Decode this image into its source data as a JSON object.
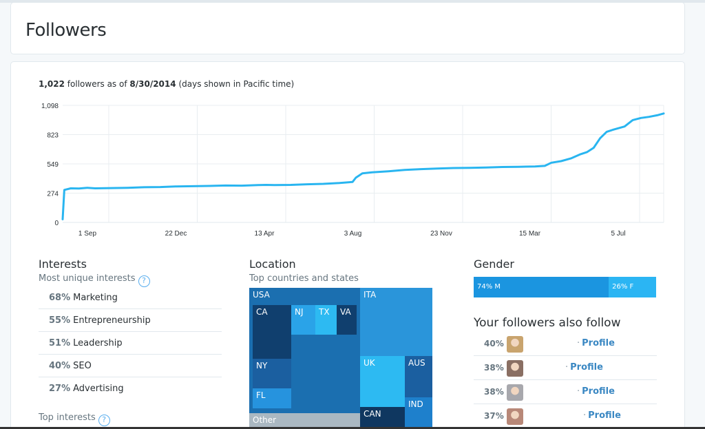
{
  "page": {
    "title": "Followers"
  },
  "summary": {
    "count": "1,022",
    "text_mid": "followers as of",
    "date": "8/30/2014",
    "note": "(days shown in Pacific time)"
  },
  "chart_data": {
    "type": "line",
    "y_ticks": [
      "0",
      "274",
      "549",
      "823",
      "1,098"
    ],
    "ylim": [
      0,
      1098
    ],
    "x_ticks": [
      "1 Sep",
      "22 Dec",
      "13 Apr",
      "3 Aug",
      "23 Nov",
      "15 Mar",
      "5 Jul"
    ],
    "series": [
      {
        "color": "#29b5f0",
        "points": [
          [
            0,
            30
          ],
          [
            1,
            305
          ],
          [
            5,
            320
          ],
          [
            10,
            318
          ],
          [
            15,
            325
          ],
          [
            20,
            320
          ],
          [
            30,
            322
          ],
          [
            40,
            325
          ],
          [
            50,
            330
          ],
          [
            60,
            332
          ],
          [
            70,
            338
          ],
          [
            80,
            340
          ],
          [
            90,
            342
          ],
          [
            100,
            346
          ],
          [
            110,
            345
          ],
          [
            120,
            350
          ],
          [
            125,
            352
          ],
          [
            130,
            350
          ],
          [
            140,
            352
          ],
          [
            150,
            358
          ],
          [
            160,
            362
          ],
          [
            170,
            370
          ],
          [
            178,
            380
          ],
          [
            180,
            420
          ],
          [
            184,
            460
          ],
          [
            190,
            470
          ],
          [
            200,
            480
          ],
          [
            210,
            492
          ],
          [
            220,
            500
          ],
          [
            230,
            505
          ],
          [
            240,
            510
          ],
          [
            250,
            512
          ],
          [
            260,
            515
          ],
          [
            270,
            520
          ],
          [
            280,
            522
          ],
          [
            290,
            525
          ],
          [
            296,
            530
          ],
          [
            300,
            560
          ],
          [
            306,
            575
          ],
          [
            312,
            600
          ],
          [
            318,
            640
          ],
          [
            322,
            660
          ],
          [
            326,
            700
          ],
          [
            330,
            790
          ],
          [
            334,
            850
          ],
          [
            338,
            870
          ],
          [
            345,
            900
          ],
          [
            350,
            960
          ],
          [
            355,
            980
          ],
          [
            360,
            990
          ],
          [
            365,
            1005
          ],
          [
            369,
            1022
          ]
        ]
      }
    ],
    "x_range": [
      0,
      369
    ]
  },
  "interests": {
    "heading": "Interests",
    "sub": "Most unique interests",
    "help": "?",
    "items": [
      {
        "pct": "68%",
        "label": "Marketing"
      },
      {
        "pct": "55%",
        "label": "Entrepreneurship"
      },
      {
        "pct": "51%",
        "label": "Leadership"
      },
      {
        "pct": "40%",
        "label": "SEO"
      },
      {
        "pct": "27%",
        "label": "Advertising"
      }
    ],
    "top_sub": "Top interests"
  },
  "location": {
    "heading": "Location",
    "sub": "Top countries and states",
    "cells": [
      "USA",
      "CA",
      "NJ",
      "TX",
      "VA",
      "NY",
      "FL",
      "Other",
      "ITA",
      "UK",
      "AUS",
      "IND",
      "CAN"
    ]
  },
  "gender": {
    "heading": "Gender",
    "male_fraction": 0.74,
    "male_label": "74% M",
    "female_label": "26% F",
    "male_color": "#1b95e0",
    "female_color": "#2bb5f3"
  },
  "also_follow": {
    "heading": "Your followers also follow",
    "rows": [
      {
        "pct": "40%",
        "link": "Profile",
        "avatar_color": "#c9a46e"
      },
      {
        "pct": "38%",
        "link": "Profile",
        "avatar_color": "#8a6f63"
      },
      {
        "pct": "38%",
        "link": "Profile",
        "avatar_color": "#a8a8ad"
      },
      {
        "pct": "37%",
        "link": "Profile",
        "avatar_color": "#b88878"
      }
    ]
  }
}
